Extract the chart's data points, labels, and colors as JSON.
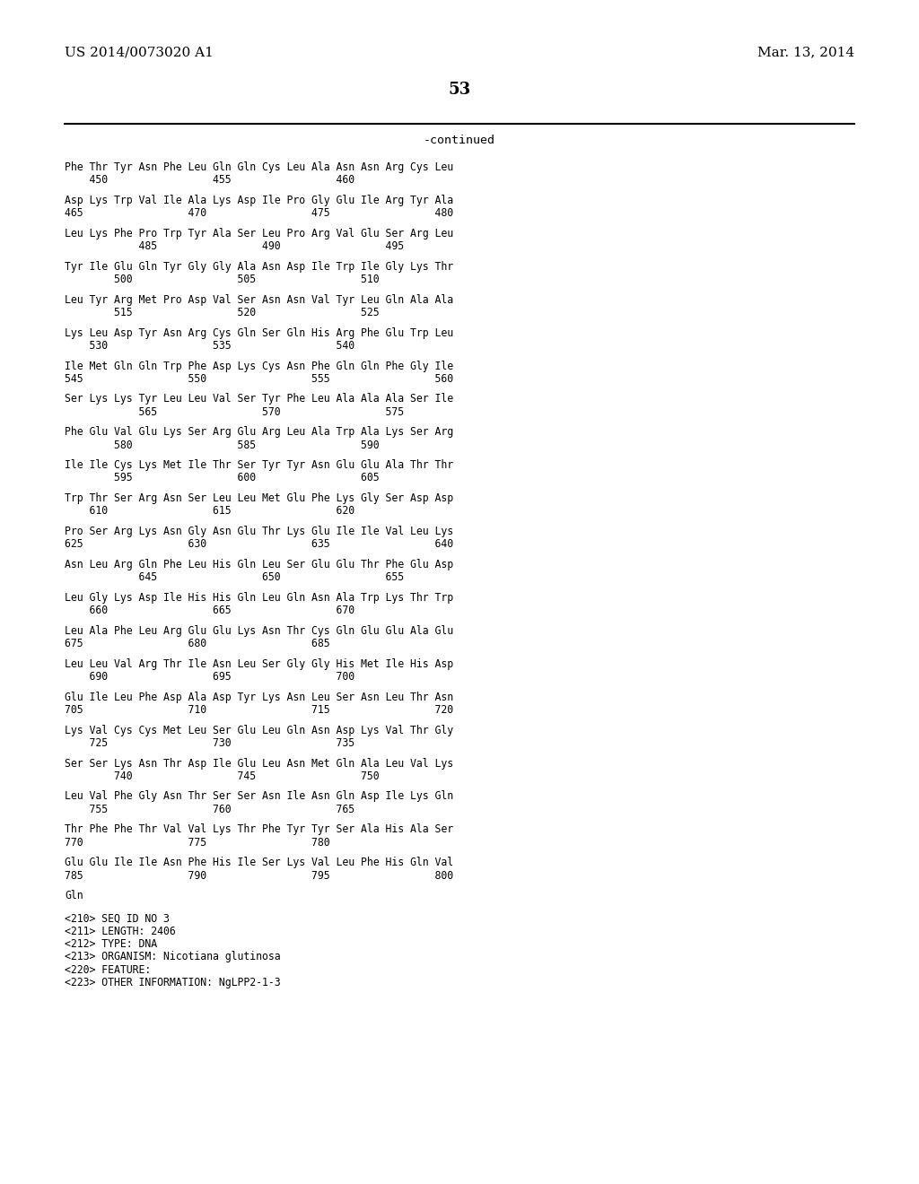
{
  "header_left": "US 2014/0073020 A1",
  "header_right": "Mar. 13, 2014",
  "page_number": "53",
  "continued_label": "-continued",
  "background_color": "#ffffff",
  "text_color": "#000000",
  "sequence_lines": [
    "Phe Thr Tyr Asn Phe Leu Gln Gln Cys Leu Ala Asn Asn Arg Cys Leu",
    "    450                 455                 460",
    "",
    "Asp Lys Trp Val Ile Ala Lys Asp Ile Pro Gly Glu Ile Arg Tyr Ala",
    "465                 470                 475                 480",
    "",
    "Leu Lys Phe Pro Trp Tyr Ala Ser Leu Pro Arg Val Glu Ser Arg Leu",
    "            485                 490                 495",
    "",
    "Tyr Ile Glu Gln Tyr Gly Gly Ala Asn Asp Ile Trp Ile Gly Lys Thr",
    "        500                 505                 510",
    "",
    "Leu Tyr Arg Met Pro Asp Val Ser Asn Asn Val Tyr Leu Gln Ala Ala",
    "        515                 520                 525",
    "",
    "Lys Leu Asp Tyr Asn Arg Cys Gln Ser Gln His Arg Phe Glu Trp Leu",
    "    530                 535                 540",
    "",
    "Ile Met Gln Gln Trp Phe Asp Lys Cys Asn Phe Gln Gln Phe Gly Ile",
    "545                 550                 555                 560",
    "",
    "Ser Lys Lys Tyr Leu Leu Val Ser Tyr Phe Leu Ala Ala Ala Ser Ile",
    "            565                 570                 575",
    "",
    "Phe Glu Val Glu Lys Ser Arg Glu Arg Leu Ala Trp Ala Lys Ser Arg",
    "        580                 585                 590",
    "",
    "Ile Ile Cys Lys Met Ile Thr Ser Tyr Tyr Asn Glu Glu Ala Thr Thr",
    "        595                 600                 605",
    "",
    "Trp Thr Ser Arg Asn Ser Leu Leu Met Glu Phe Lys Gly Ser Asp Asp",
    "    610                 615                 620",
    "",
    "Pro Ser Arg Lys Asn Gly Asn Glu Thr Lys Glu Ile Ile Val Leu Lys",
    "625                 630                 635                 640",
    "",
    "Asn Leu Arg Gln Phe Leu His Gln Leu Ser Glu Glu Thr Phe Glu Asp",
    "            645                 650                 655",
    "",
    "Leu Gly Lys Asp Ile His His Gln Leu Gln Asn Ala Trp Lys Thr Trp",
    "    660                 665                 670",
    "",
    "Leu Ala Phe Leu Arg Glu Glu Lys Asn Thr Cys Gln Glu Glu Ala Glu",
    "675                 680                 685",
    "",
    "Leu Leu Val Arg Thr Ile Asn Leu Ser Gly Gly His Met Ile His Asp",
    "    690                 695                 700",
    "",
    "Glu Ile Leu Phe Asp Ala Asp Tyr Lys Asn Leu Ser Asn Leu Thr Asn",
    "705                 710                 715                 720",
    "",
    "Lys Val Cys Cys Met Leu Ser Glu Leu Gln Asn Asp Lys Val Thr Gly",
    "    725                 730                 735",
    "",
    "Ser Ser Lys Asn Thr Asp Ile Glu Leu Asn Met Gln Ala Leu Val Lys",
    "        740                 745                 750",
    "",
    "Leu Val Phe Gly Asn Thr Ser Ser Asn Ile Asn Gln Asp Ile Lys Gln",
    "    755                 760                 765",
    "",
    "Thr Phe Phe Thr Val Val Lys Thr Phe Tyr Tyr Ser Ala His Ala Ser",
    "770                 775                 780",
    "",
    "Glu Glu Ile Ile Asn Phe His Ile Ser Lys Val Leu Phe His Gln Val",
    "785                 790                 795                 800",
    "",
    "Gln"
  ],
  "footer_lines": [
    "<210> SEQ ID NO 3",
    "<211> LENGTH: 2406",
    "<212> TYPE: DNA",
    "<213> ORGANISM: Nicotiana glutinosa",
    "<220> FEATURE:",
    "<223> OTHER INFORMATION: NgLPP2-1-3"
  ]
}
